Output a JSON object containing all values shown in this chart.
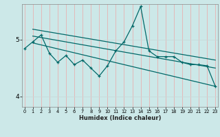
{
  "title": "",
  "xlabel": "Humidex (Indice chaleur)",
  "bg_color": "#cce8e8",
  "line_color": "#006868",
  "grid_color_v": "#e8b0b0",
  "grid_color_h": "#c8d8d8",
  "x_ticks": [
    0,
    1,
    2,
    3,
    4,
    5,
    6,
    7,
    8,
    9,
    10,
    11,
    12,
    13,
    14,
    15,
    16,
    17,
    18,
    19,
    20,
    21,
    22,
    23
  ],
  "y_ticks": [
    4,
    5
  ],
  "ylim": [
    3.82,
    5.62
  ],
  "xlim": [
    -0.3,
    23.3
  ],
  "zigzag_x": [
    0,
    1,
    2,
    3,
    4,
    5,
    6,
    7,
    8,
    9,
    10,
    11,
    12,
    13,
    14,
    15,
    16,
    17,
    18,
    19,
    20,
    21,
    22,
    23
  ],
  "zigzag_y": [
    4.84,
    4.96,
    5.08,
    4.76,
    4.6,
    4.72,
    4.56,
    4.64,
    4.5,
    4.36,
    4.54,
    4.8,
    4.96,
    5.24,
    5.58,
    4.8,
    4.7,
    4.7,
    4.7,
    4.6,
    4.56,
    4.56,
    4.54,
    4.18
  ],
  "line1_x": [
    1,
    23
  ],
  "line1_y": [
    5.18,
    4.64
  ],
  "line2_x": [
    1,
    23
  ],
  "line2_y": [
    5.06,
    4.5
  ],
  "line3_x": [
    1,
    23
  ],
  "line3_y": [
    4.94,
    4.18
  ]
}
